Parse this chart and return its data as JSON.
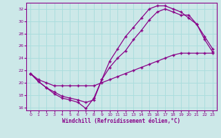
{
  "bg_color": "#cce8e8",
  "grid_color": "#aadddd",
  "line_color": "#880088",
  "xlabel": "Windchill (Refroidissement éolien,°C)",
  "ylim": [
    15.5,
    33.0
  ],
  "xlim": [
    -0.5,
    23.5
  ],
  "yticks": [
    16,
    18,
    20,
    22,
    24,
    26,
    28,
    30,
    32
  ],
  "xticks": [
    0,
    1,
    2,
    3,
    4,
    5,
    6,
    7,
    8,
    9,
    10,
    11,
    12,
    13,
    14,
    15,
    16,
    17,
    18,
    19,
    20,
    21,
    22,
    23
  ],
  "line1_x": [
    0,
    1,
    2,
    3,
    4,
    5,
    6,
    7,
    8,
    9,
    10,
    11,
    12,
    13,
    14,
    15,
    16,
    17,
    18,
    19,
    20,
    21,
    22,
    23
  ],
  "line1_y": [
    21.5,
    20.2,
    19.2,
    18.2,
    17.5,
    17.2,
    16.8,
    15.8,
    17.5,
    20.5,
    23.5,
    25.5,
    27.5,
    29.0,
    30.5,
    32.0,
    32.5,
    32.5,
    32.0,
    31.5,
    30.5,
    29.5,
    27.0,
    25.0
  ],
  "line2_x": [
    0,
    1,
    2,
    3,
    4,
    5,
    6,
    7,
    8,
    9,
    10,
    11,
    12,
    13,
    14,
    15,
    16,
    17,
    18,
    19,
    20,
    21,
    22,
    23
  ],
  "line2_y": [
    21.5,
    20.2,
    19.2,
    18.5,
    17.8,
    17.5,
    17.2,
    16.8,
    17.2,
    20.5,
    22.5,
    24.0,
    25.2,
    27.0,
    28.5,
    30.2,
    31.5,
    32.0,
    31.5,
    31.0,
    31.0,
    29.5,
    27.5,
    25.5
  ],
  "line3_x": [
    0,
    1,
    2,
    3,
    4,
    5,
    6,
    7,
    8,
    9,
    10,
    11,
    12,
    13,
    14,
    15,
    16,
    17,
    18,
    19,
    20,
    21,
    22,
    23
  ],
  "line3_y": [
    21.5,
    20.5,
    20.0,
    19.5,
    19.5,
    19.5,
    19.5,
    19.5,
    19.5,
    20.0,
    20.5,
    21.0,
    21.5,
    22.0,
    22.5,
    23.0,
    23.5,
    24.0,
    24.5,
    24.8,
    24.8,
    24.8,
    24.8,
    24.8
  ]
}
